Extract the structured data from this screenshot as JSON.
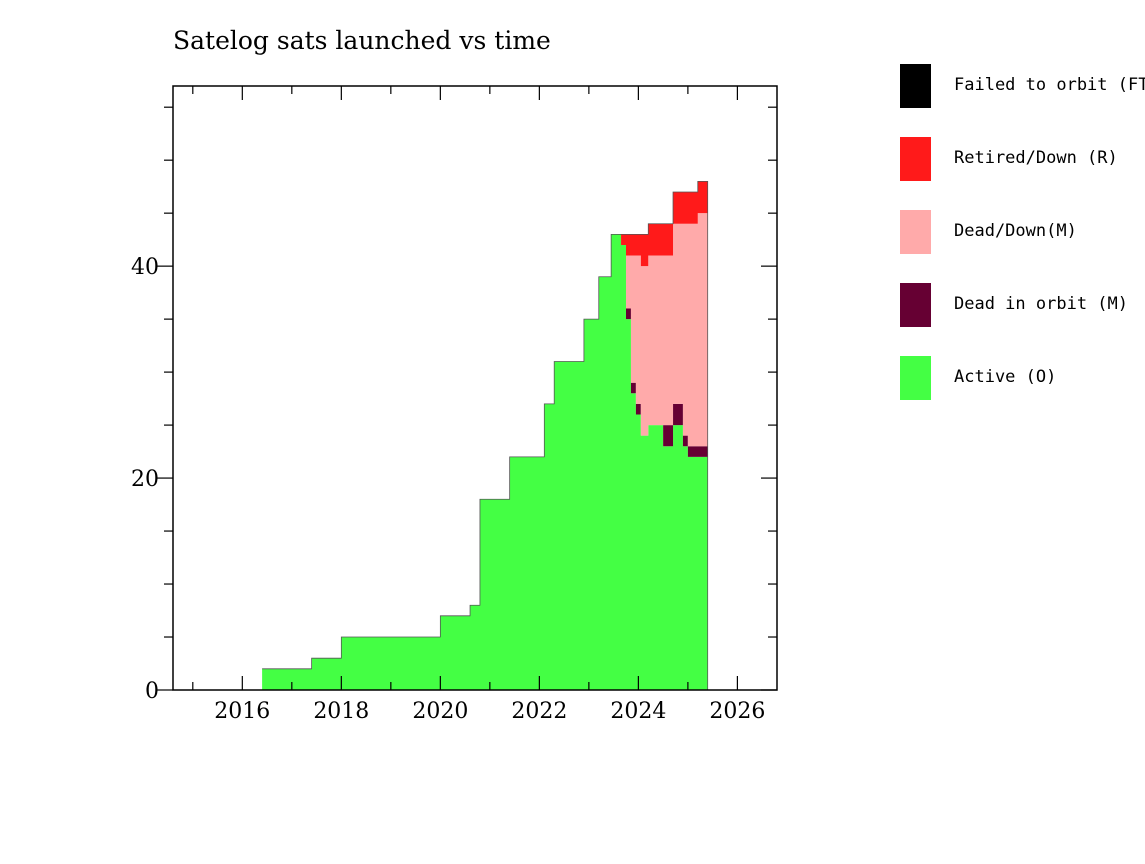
{
  "chart_data": {
    "type": "area",
    "title": "Satelog sats launched vs time",
    "xlabel": "",
    "ylabel": "",
    "xlim": [
      2014.6,
      2026.8
    ],
    "ylim": [
      0,
      57
    ],
    "x_ticks": [
      2016,
      2018,
      2020,
      2022,
      2024,
      2026
    ],
    "y_ticks": [
      0,
      20,
      40
    ],
    "legend_position": "right",
    "stacked": true,
    "series": [
      {
        "name": "Active (O)",
        "color": "#44ff44",
        "x": [
          2016.4,
          2017.4,
          2018.0,
          2020.0,
          2020.6,
          2020.8,
          2021.4,
          2022.1,
          2022.3,
          2022.9,
          2023.2,
          2023.45,
          2023.65,
          2023.75,
          2023.85,
          2023.95,
          2024.05,
          2024.2,
          2024.5,
          2024.7,
          2024.9,
          2025.0,
          2025.2,
          2025.4
        ],
        "values": [
          2,
          3,
          5,
          7,
          8,
          18,
          22,
          27,
          31,
          35,
          39,
          43,
          42,
          35,
          28,
          26,
          24,
          25,
          23,
          25,
          23,
          22,
          22,
          22
        ]
      },
      {
        "name": "Dead in orbit (M)",
        "color": "#660033",
        "x": [
          2016.4,
          2017.4,
          2018.0,
          2020.0,
          2020.6,
          2020.8,
          2021.4,
          2022.1,
          2022.3,
          2022.9,
          2023.2,
          2023.45,
          2023.65,
          2023.75,
          2023.85,
          2023.95,
          2024.05,
          2024.2,
          2024.5,
          2024.7,
          2024.9,
          2025.0,
          2025.2,
          2025.4
        ],
        "values": [
          0,
          0,
          0,
          0,
          0,
          0,
          0,
          0,
          0,
          0,
          0,
          0,
          0,
          1,
          1,
          1,
          0,
          0,
          2,
          2,
          1,
          1,
          1,
          0
        ]
      },
      {
        "name": "Dead/Down(M)",
        "color": "#ffaaaa",
        "x": [
          2016.4,
          2017.4,
          2018.0,
          2020.0,
          2020.6,
          2020.8,
          2021.4,
          2022.1,
          2022.3,
          2022.9,
          2023.2,
          2023.45,
          2023.65,
          2023.75,
          2023.85,
          2023.95,
          2024.05,
          2024.2,
          2024.5,
          2024.7,
          2024.9,
          2025.0,
          2025.2,
          2025.4
        ],
        "values": [
          0,
          0,
          0,
          0,
          0,
          0,
          0,
          0,
          0,
          0,
          0,
          0,
          0,
          5,
          12,
          14,
          16,
          16,
          16,
          17,
          20,
          21,
          22,
          23
        ]
      },
      {
        "name": "Retired/Down (R)",
        "color": "#ff1a1a",
        "x": [
          2016.4,
          2017.4,
          2018.0,
          2020.0,
          2020.6,
          2020.8,
          2021.4,
          2022.1,
          2022.3,
          2022.9,
          2023.2,
          2023.45,
          2023.65,
          2023.75,
          2023.85,
          2023.95,
          2024.05,
          2024.2,
          2024.5,
          2024.7,
          2024.9,
          2025.0,
          2025.2,
          2025.4
        ],
        "values": [
          0,
          0,
          0,
          0,
          0,
          0,
          0,
          0,
          0,
          0,
          0,
          0,
          1,
          2,
          2,
          2,
          3,
          3,
          3,
          3,
          3,
          3,
          3,
          3
        ]
      },
      {
        "name": "Failed to orbit (FTO)",
        "color": "#000000",
        "x": [
          2016.4,
          2017.4,
          2018.0,
          2020.0,
          2020.6,
          2020.8,
          2021.4,
          2022.1,
          2022.3,
          2022.9,
          2023.2,
          2023.45,
          2023.65,
          2023.75,
          2023.85,
          2023.95,
          2024.05,
          2024.2,
          2024.5,
          2024.7,
          2024.9,
          2025.0,
          2025.2,
          2025.4
        ],
        "values": [
          0,
          0,
          0,
          0,
          0,
          0,
          0,
          0,
          0,
          0,
          0,
          0,
          0,
          0,
          0,
          0,
          0,
          0,
          0,
          0,
          0,
          0,
          0,
          0
        ]
      }
    ],
    "x_end": 2025.4,
    "legend": [
      {
        "label": "Failed to orbit (FTO)",
        "color": "#000000"
      },
      {
        "label": "Retired/Down (R)",
        "color": "#ff1a1a"
      },
      {
        "label": "Dead/Down(M)",
        "color": "#ffaaaa"
      },
      {
        "label": "Dead in orbit (M)",
        "color": "#660033"
      },
      {
        "label": "Active (O)",
        "color": "#44ff44"
      }
    ]
  }
}
